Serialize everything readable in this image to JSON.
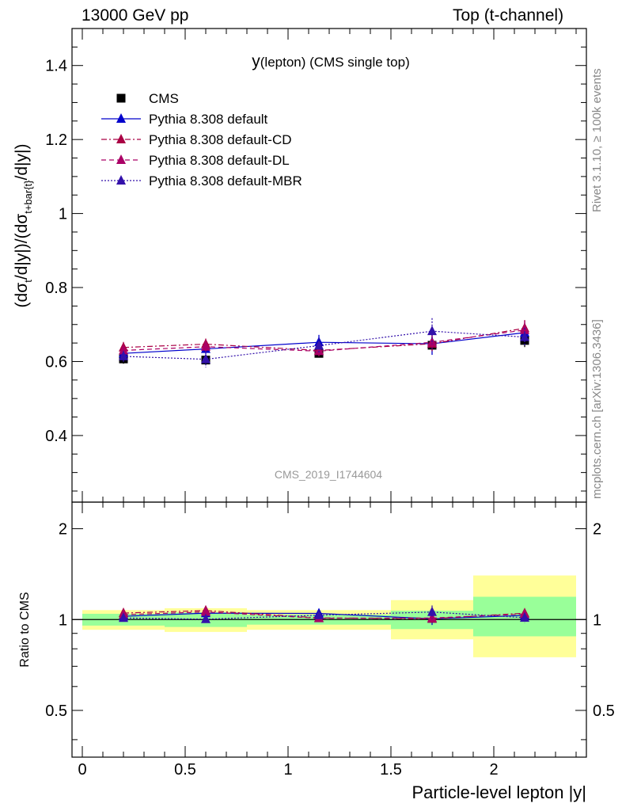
{
  "header": {
    "left_label": "13000 GeV pp",
    "right_label": "Top (t-channel)"
  },
  "side_labels": {
    "rivet": "Rivet 3.1.10, ≥ 100k events",
    "mcplots": "mcplots.cern.ch [arXiv:1306.3436]"
  },
  "chart_data": [
    {
      "type": "line",
      "title_main": "y",
      "title_sub": "(lepton) (CMS single top)",
      "watermark": "CMS_2019_I1744604",
      "ylabel_parts": [
        "(dσ",
        "t",
        "/d|y|)/(dσ",
        "t+bar{t}",
        "/d|y|)"
      ],
      "ylim": [
        0.22,
        1.5
      ],
      "yticks": [
        0.4,
        0.6,
        0.8,
        1,
        1.2,
        1.4
      ],
      "ytick_labels": [
        "0.4",
        "0.6",
        "0.8",
        "1",
        "1.2",
        "1.4"
      ],
      "xlim": [
        -0.05,
        2.45
      ],
      "x": [
        0.2,
        0.6,
        1.15,
        1.7,
        2.15
      ],
      "legend_position": "top-left",
      "series": [
        {
          "name": "CMS",
          "values": [
            0.607,
            0.604,
            0.622,
            0.644,
            0.657
          ],
          "errors": [
            0.013,
            0.012,
            0.01,
            0.012,
            0.018
          ],
          "color": "#000000"
        },
        {
          "name": "Pythia 8.308 default",
          "values": [
            0.622,
            0.634,
            0.652,
            0.648,
            0.678
          ],
          "errors": [
            0.012,
            0.014,
            0.02,
            0.03,
            0.025
          ],
          "color": "#0000cc"
        },
        {
          "name": "Pythia 8.308 default-CD",
          "values": [
            0.638,
            0.647,
            0.63,
            0.648,
            0.69
          ],
          "errors": [
            0.015,
            0.015,
            0.012,
            0.02,
            0.022
          ],
          "color": "#aa0044"
        },
        {
          "name": "Pythia 8.308 default-DL",
          "values": [
            0.63,
            0.64,
            0.628,
            0.652,
            0.685
          ],
          "errors": [
            0.015,
            0.018,
            0.014,
            0.02,
            0.025
          ],
          "color": "#aa0066"
        },
        {
          "name": "Pythia 8.308 default-MBR",
          "values": [
            0.614,
            0.606,
            0.643,
            0.682,
            0.666
          ],
          "errors": [
            0.015,
            0.022,
            0.02,
            0.035,
            0.025
          ],
          "color": "#3311aa"
        }
      ]
    },
    {
      "type": "line",
      "ylabel": "Ratio to CMS",
      "xlabel": "Particle-level lepton |y|",
      "ylim": [
        0.35,
        2.45
      ],
      "yticks": [
        0.5,
        1,
        2
      ],
      "ytick_labels": [
        "0.5",
        "1",
        "2"
      ],
      "xlim": [
        -0.05,
        2.45
      ],
      "xticks": [
        0,
        0.5,
        1,
        1.5,
        2
      ],
      "xtick_labels": [
        "0",
        "0.5",
        "1",
        "1.5",
        "2"
      ],
      "x": [
        0.2,
        0.6,
        1.15,
        1.7,
        2.15
      ],
      "bins": [
        [
          0,
          0.4
        ],
        [
          0.4,
          0.8
        ],
        [
          0.8,
          1.5
        ],
        [
          1.5,
          1.9
        ],
        [
          1.9,
          2.4
        ]
      ],
      "band_green": [
        [
          0.955,
          1.045
        ],
        [
          0.945,
          1.055
        ],
        [
          0.962,
          1.038
        ],
        [
          0.93,
          1.07
        ],
        [
          0.88,
          1.19
        ]
      ],
      "band_yellow": [
        [
          0.925,
          1.075
        ],
        [
          0.91,
          1.09
        ],
        [
          0.925,
          1.075
        ],
        [
          0.86,
          1.16
        ],
        [
          0.75,
          1.4
        ]
      ],
      "series": [
        {
          "name": "Pythia 8.308 default",
          "values": [
            1.025,
            1.05,
            1.048,
            1.006,
            1.032
          ],
          "color": "#0000cc"
        },
        {
          "name": "Pythia 8.308 default-CD",
          "values": [
            1.051,
            1.071,
            1.013,
            1.006,
            1.05
          ],
          "color": "#aa0044"
        },
        {
          "name": "Pythia 8.308 default-DL",
          "values": [
            1.038,
            1.06,
            1.01,
            1.012,
            1.043
          ],
          "color": "#aa0066"
        },
        {
          "name": "Pythia 8.308 default-MBR",
          "values": [
            1.012,
            1.003,
            1.034,
            1.059,
            1.014
          ],
          "color": "#3311aa"
        }
      ]
    }
  ]
}
